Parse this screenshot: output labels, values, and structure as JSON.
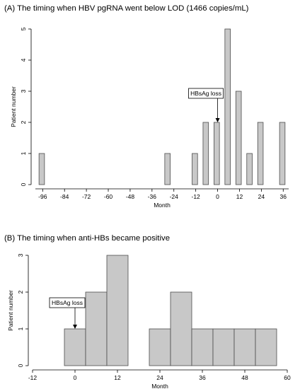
{
  "chart_data": [
    {
      "type": "bar",
      "title": "(A) The timing when HBV pgRNA went below LOD (1466 copies/mL)",
      "xlabel": "Month",
      "ylabel": "Patient number",
      "xlim": [
        -100,
        39
      ],
      "ylim": [
        0,
        5
      ],
      "x_ticks": [
        -96,
        -84,
        -72,
        -60,
        -48,
        -36,
        -24,
        -12,
        0,
        12,
        24,
        36
      ],
      "y_ticks": [
        0,
        1,
        2,
        3,
        4,
        5
      ],
      "bin_width": 3,
      "bars": [
        {
          "start": -98,
          "value": 1
        },
        {
          "start": -29,
          "value": 1
        },
        {
          "start": -14,
          "value": 1
        },
        {
          "start": -8,
          "value": 2
        },
        {
          "start": -2,
          "value": 2
        },
        {
          "start": 4,
          "value": 5
        },
        {
          "start": 10,
          "value": 3
        },
        {
          "start": 16,
          "value": 1
        },
        {
          "start": 22,
          "value": 2
        },
        {
          "start": 34,
          "value": 2
        }
      ],
      "annotation": {
        "label": "HBsAg loss",
        "x": 0,
        "arrow_to_y": 2
      }
    },
    {
      "type": "bar",
      "title": "(B) The timing when anti-HBs became positive",
      "xlabel": "Month",
      "ylabel": "Patient number",
      "xlim": [
        -12,
        60
      ],
      "ylim": [
        0,
        3
      ],
      "x_ticks": [
        -12,
        0,
        12,
        24,
        36,
        48,
        60
      ],
      "y_ticks": [
        0,
        1,
        2,
        3
      ],
      "bin_width": 6,
      "bars": [
        {
          "start": -3,
          "value": 1
        },
        {
          "start": 3,
          "value": 2
        },
        {
          "start": 9,
          "value": 3
        },
        {
          "start": 21,
          "value": 1
        },
        {
          "start": 27,
          "value": 2
        },
        {
          "start": 33,
          "value": 1
        },
        {
          "start": 39,
          "value": 1
        },
        {
          "start": 45,
          "value": 1
        },
        {
          "start": 51,
          "value": 1
        }
      ],
      "annotation": {
        "label": "HBsAg loss",
        "x": 0,
        "arrow_to_y": 1
      }
    }
  ]
}
